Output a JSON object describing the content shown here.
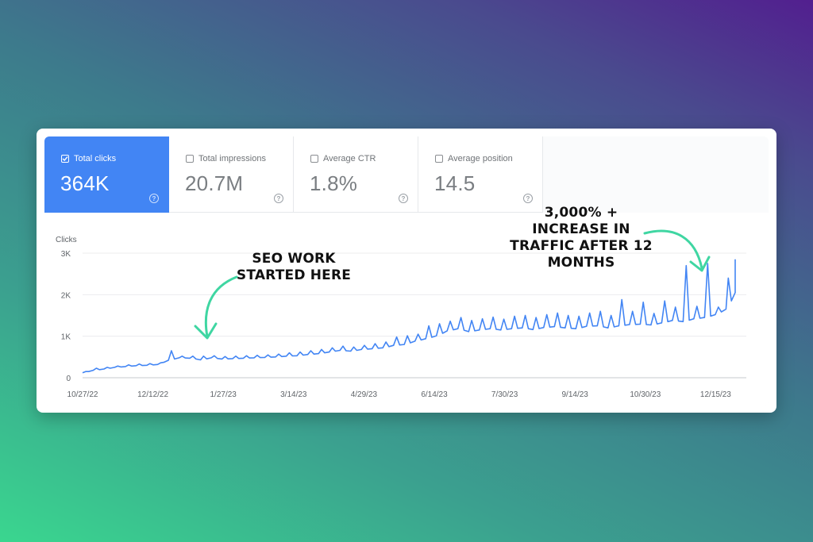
{
  "metrics": [
    {
      "label": "Total clicks",
      "value": "364K",
      "active": true
    },
    {
      "label": "Total impressions",
      "value": "20.7M",
      "active": false
    },
    {
      "label": "Average CTR",
      "value": "1.8%",
      "active": false
    },
    {
      "label": "Average position",
      "value": "14.5",
      "active": false
    }
  ],
  "help_glyph": "?",
  "annotations": {
    "seo_start": [
      "SEO WORK",
      "STARTED HERE"
    ],
    "growth": [
      "3,000% +",
      "INCREASE IN",
      "TRAFFIC AFTER 12",
      "MONTHS"
    ]
  },
  "colors": {
    "accent": "#4285f4",
    "arrow": "#3fd6a2"
  },
  "chart_data": {
    "type": "line",
    "ylabel": "Clicks",
    "ylim": [
      0,
      3000
    ],
    "yticks": [
      {
        "v": 0,
        "label": "0"
      },
      {
        "v": 1000,
        "label": "1K"
      },
      {
        "v": 2000,
        "label": "2K"
      },
      {
        "v": 3000,
        "label": "3K"
      }
    ],
    "xticks": [
      "10/27/22",
      "12/12/22",
      "1/27/23",
      "3/14/23",
      "4/29/23",
      "6/14/23",
      "7/30/23",
      "9/14/23",
      "10/30/23",
      "12/15/23"
    ],
    "x_range_days": [
      0,
      426
    ],
    "series": [
      {
        "values": [
          [
            0,
            120
          ],
          [
            7,
            180
          ],
          [
            14,
            210
          ],
          [
            21,
            250
          ],
          [
            28,
            270
          ],
          [
            35,
            290
          ],
          [
            42,
            300
          ],
          [
            49,
            320
          ],
          [
            56,
            420
          ],
          [
            63,
            480
          ],
          [
            70,
            470
          ],
          [
            77,
            430
          ],
          [
            84,
            480
          ],
          [
            91,
            450
          ],
          [
            98,
            460
          ],
          [
            105,
            470
          ],
          [
            112,
            480
          ],
          [
            119,
            490
          ],
          [
            126,
            500
          ],
          [
            133,
            520
          ],
          [
            140,
            530
          ],
          [
            147,
            560
          ],
          [
            154,
            580
          ],
          [
            161,
            620
          ],
          [
            168,
            660
          ],
          [
            175,
            640
          ],
          [
            182,
            680
          ],
          [
            189,
            700
          ],
          [
            196,
            720
          ],
          [
            203,
            780
          ],
          [
            210,
            800
          ],
          [
            217,
            880
          ],
          [
            224,
            940
          ],
          [
            231,
            1010
          ],
          [
            238,
            1130
          ],
          [
            245,
            1180
          ],
          [
            252,
            1110
          ],
          [
            259,
            1150
          ],
          [
            266,
            1180
          ],
          [
            273,
            1150
          ],
          [
            280,
            1180
          ],
          [
            287,
            1200
          ],
          [
            294,
            1160
          ],
          [
            301,
            1210
          ],
          [
            308,
            1230
          ],
          [
            315,
            1200
          ],
          [
            322,
            1180
          ],
          [
            329,
            1240
          ],
          [
            336,
            1250
          ],
          [
            343,
            1200
          ],
          [
            350,
            1250
          ],
          [
            357,
            1280
          ],
          [
            364,
            1290
          ],
          [
            371,
            1270
          ],
          [
            378,
            1320
          ],
          [
            385,
            1380
          ],
          [
            392,
            1350
          ],
          [
            399,
            1420
          ],
          [
            406,
            1450
          ],
          [
            413,
            1520
          ],
          [
            420,
            1650
          ],
          [
            426,
            2050
          ]
        ],
        "peaks": [
          [
            0,
            150
          ],
          [
            7,
            230
          ],
          [
            14,
            250
          ],
          [
            21,
            280
          ],
          [
            28,
            310
          ],
          [
            35,
            330
          ],
          [
            42,
            340
          ],
          [
            49,
            360
          ],
          [
            56,
            650
          ],
          [
            63,
            520
          ],
          [
            70,
            520
          ],
          [
            77,
            520
          ],
          [
            84,
            530
          ],
          [
            91,
            510
          ],
          [
            98,
            520
          ],
          [
            105,
            530
          ],
          [
            112,
            540
          ],
          [
            119,
            550
          ],
          [
            126,
            570
          ],
          [
            133,
            600
          ],
          [
            140,
            620
          ],
          [
            147,
            650
          ],
          [
            154,
            680
          ],
          [
            161,
            720
          ],
          [
            168,
            760
          ],
          [
            175,
            740
          ],
          [
            182,
            780
          ],
          [
            189,
            820
          ],
          [
            196,
            860
          ],
          [
            203,
            980
          ],
          [
            210,
            1010
          ],
          [
            217,
            1050
          ],
          [
            224,
            1250
          ],
          [
            231,
            1300
          ],
          [
            238,
            1360
          ],
          [
            245,
            1450
          ],
          [
            252,
            1380
          ],
          [
            259,
            1420
          ],
          [
            266,
            1460
          ],
          [
            273,
            1410
          ],
          [
            280,
            1480
          ],
          [
            287,
            1500
          ],
          [
            294,
            1450
          ],
          [
            301,
            1520
          ],
          [
            308,
            1560
          ],
          [
            315,
            1500
          ],
          [
            322,
            1480
          ],
          [
            329,
            1560
          ],
          [
            336,
            1600
          ],
          [
            343,
            1500
          ],
          [
            350,
            1880
          ],
          [
            357,
            1600
          ],
          [
            364,
            1820
          ],
          [
            371,
            1550
          ],
          [
            378,
            1850
          ],
          [
            385,
            1700
          ],
          [
            392,
            2700
          ],
          [
            399,
            1720
          ],
          [
            406,
            2750
          ],
          [
            413,
            1700
          ],
          [
            420,
            2400
          ],
          [
            426,
            2850
          ]
        ]
      }
    ]
  }
}
